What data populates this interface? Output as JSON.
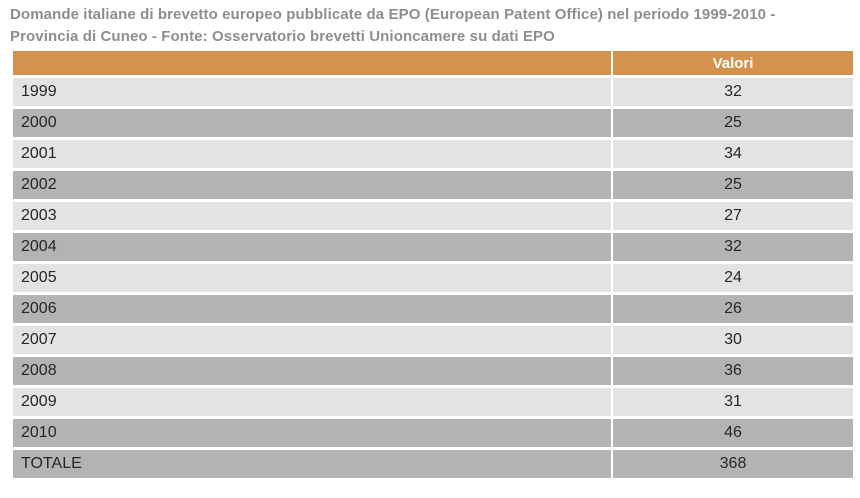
{
  "title": {
    "lines": [
      "Domande italiane di brevetto europeo pubblicate da EPO (European Patent Office) nel periodo 1999-2010 -",
      "Provincia di Cuneo - Fonte: Osservatorio brevetti Unioncamere su dati EPO"
    ]
  },
  "table": {
    "value_header": "Valori",
    "rows": [
      {
        "label": "1999",
        "value": "32"
      },
      {
        "label": "2000",
        "value": "25"
      },
      {
        "label": "2001",
        "value": "34"
      },
      {
        "label": "2002",
        "value": "25"
      },
      {
        "label": "2003",
        "value": "27"
      },
      {
        "label": "2004",
        "value": "32"
      },
      {
        "label": "2005",
        "value": "24"
      },
      {
        "label": "2006",
        "value": "26"
      },
      {
        "label": "2007",
        "value": "30"
      },
      {
        "label": "2008",
        "value": "36"
      },
      {
        "label": "2009",
        "value": "31"
      },
      {
        "label": "2010",
        "value": "46"
      },
      {
        "label": "TOTALE",
        "value": "368"
      }
    ]
  },
  "colors": {
    "accent": "#d3924d",
    "row_light": "#e4e3e1",
    "row_dark": "#b4b3b1",
    "title_gray": "#8e8e8e"
  },
  "chart_data": {
    "type": "table",
    "title": "Domande italiane di brevetto europeo pubblicate da EPO (European Patent Office) nel periodo 1999-2010 - Provincia di Cuneo - Fonte: Osservatorio brevetti Unioncamere su dati EPO",
    "columns": [
      "",
      "Valori"
    ],
    "categories": [
      "1999",
      "2000",
      "2001",
      "2002",
      "2003",
      "2004",
      "2005",
      "2006",
      "2007",
      "2008",
      "2009",
      "2010"
    ],
    "values": [
      32,
      25,
      34,
      25,
      27,
      32,
      24,
      26,
      30,
      36,
      31,
      46
    ],
    "total_label": "TOTALE",
    "total": 368
  }
}
